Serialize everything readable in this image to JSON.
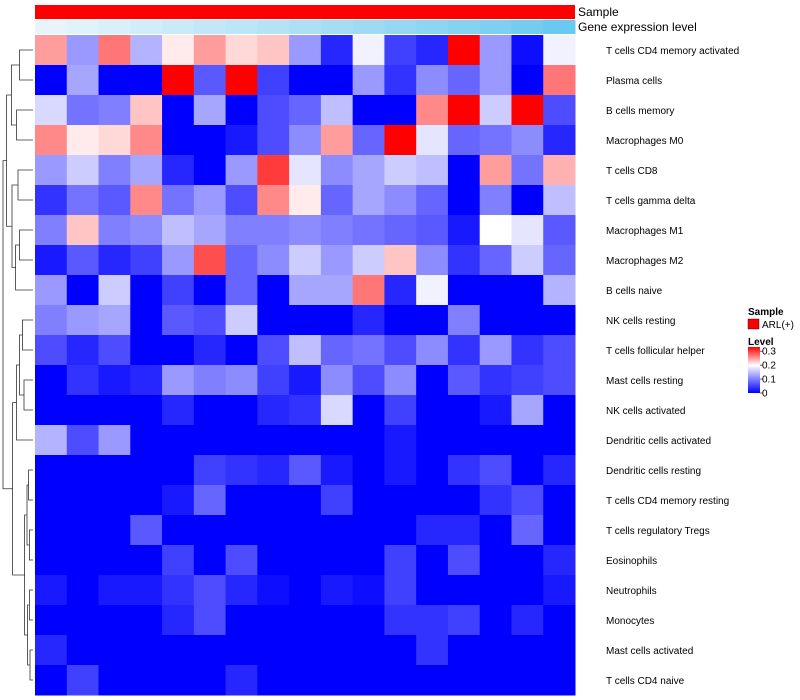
{
  "chart_data": {
    "type": "heatmap",
    "annotations": {
      "top_track_label": "Sample",
      "second_track_label": "Gene expression level",
      "top_track_color": "#ff0000",
      "second_track_gradient": [
        "#eaf6fb",
        "#5bc4ef"
      ]
    },
    "rows": [
      "T cells CD4 memory activated",
      "Plasma cells",
      "B cells memory",
      "Macrophages M0",
      "T cells CD8",
      "T cells gamma delta",
      "Macrophages M1",
      "Macrophages M2",
      "B cells naive",
      "NK cells resting",
      "T cells follicular helper",
      "Mast cells resting",
      "NK cells activated",
      "Dendritic cells activated",
      "Dendritic cells resting",
      "T cells CD4 memory resting",
      "T cells regulatory  Tregs",
      "Eosinophils",
      "Neutrophils",
      "Monocytes",
      "Mast cells activated",
      "T cells CD4 naive"
    ],
    "values": [
      [
        0.25,
        0.12,
        0.27,
        0.14,
        0.21,
        0.25,
        0.22,
        0.23,
        0.12,
        0.03,
        0.19,
        0.05,
        0.03,
        0.33,
        0.12,
        0.01,
        0.19
      ],
      [
        0.0,
        0.13,
        0.0,
        0.0,
        0.33,
        0.07,
        0.33,
        0.05,
        0.0,
        0.0,
        0.12,
        0.04,
        0.11,
        0.08,
        0.12,
        0.0,
        0.27
      ],
      [
        0.17,
        0.09,
        0.1,
        0.23,
        0.0,
        0.13,
        0.0,
        0.06,
        0.08,
        0.15,
        0.0,
        0.0,
        0.26,
        0.33,
        0.16,
        0.33,
        0.06
      ],
      [
        0.26,
        0.21,
        0.22,
        0.26,
        0.0,
        0.0,
        0.02,
        0.06,
        0.11,
        0.25,
        0.08,
        0.33,
        0.18,
        0.08,
        0.09,
        0.11,
        0.03
      ],
      [
        0.12,
        0.16,
        0.1,
        0.13,
        0.03,
        0.0,
        0.12,
        0.3,
        0.18,
        0.11,
        0.13,
        0.16,
        0.15,
        0.0,
        0.25,
        0.09,
        0.24
      ],
      [
        0.04,
        0.09,
        0.07,
        0.26,
        0.09,
        0.12,
        0.06,
        0.26,
        0.21,
        0.08,
        0.13,
        0.11,
        0.08,
        0.0,
        0.1,
        0.0,
        0.15
      ],
      [
        0.1,
        0.23,
        0.1,
        0.11,
        0.15,
        0.13,
        0.1,
        0.1,
        0.11,
        0.1,
        0.09,
        0.08,
        0.07,
        0.02,
        0.2,
        0.18,
        0.07
      ],
      [
        0.02,
        0.07,
        0.03,
        0.05,
        0.12,
        0.29,
        0.08,
        0.11,
        0.16,
        0.12,
        0.16,
        0.23,
        0.11,
        0.04,
        0.08,
        0.16,
        0.08
      ],
      [
        0.12,
        0.0,
        0.16,
        0.0,
        0.05,
        0.0,
        0.08,
        0.0,
        0.13,
        0.13,
        0.27,
        0.03,
        0.19,
        0.0,
        0.0,
        0.0,
        0.14
      ],
      [
        0.1,
        0.12,
        0.13,
        0.0,
        0.07,
        0.06,
        0.16,
        0.0,
        0.0,
        0.0,
        0.03,
        0.0,
        0.0,
        0.1,
        0.0,
        0.0,
        0.0
      ],
      [
        0.06,
        0.03,
        0.06,
        0.0,
        0.0,
        0.03,
        0.0,
        0.06,
        0.15,
        0.08,
        0.09,
        0.06,
        0.11,
        0.04,
        0.12,
        0.04,
        0.06
      ],
      [
        0.0,
        0.04,
        0.02,
        0.03,
        0.12,
        0.1,
        0.11,
        0.05,
        0.02,
        0.11,
        0.06,
        0.11,
        0.0,
        0.07,
        0.04,
        0.05,
        0.06
      ],
      [
        0.0,
        0.0,
        0.0,
        0.0,
        0.03,
        0.0,
        0.0,
        0.03,
        0.04,
        0.17,
        0.0,
        0.05,
        0.0,
        0.0,
        0.02,
        0.13,
        0.0
      ],
      [
        0.14,
        0.06,
        0.12,
        0.0,
        0.0,
        0.0,
        0.0,
        0.0,
        0.0,
        0.0,
        0.0,
        0.02,
        0.0,
        0.0,
        0.0,
        0.0,
        0.0
      ],
      [
        0.0,
        0.0,
        0.0,
        0.0,
        0.0,
        0.05,
        0.04,
        0.03,
        0.07,
        0.02,
        0.0,
        0.02,
        0.0,
        0.04,
        0.06,
        0.0,
        0.03
      ],
      [
        0.0,
        0.0,
        0.0,
        0.0,
        0.02,
        0.08,
        0.0,
        0.0,
        0.0,
        0.05,
        0.0,
        0.0,
        0.0,
        0.0,
        0.04,
        0.06,
        0.0
      ],
      [
        0.0,
        0.0,
        0.0,
        0.07,
        0.0,
        0.0,
        0.0,
        0.0,
        0.0,
        0.0,
        0.0,
        0.0,
        0.03,
        0.03,
        0.0,
        0.08,
        0.0
      ],
      [
        0.0,
        0.0,
        0.0,
        0.0,
        0.05,
        0.0,
        0.06,
        0.0,
        0.0,
        0.0,
        0.0,
        0.05,
        0.0,
        0.06,
        0.0,
        0.0,
        0.03
      ],
      [
        0.02,
        0.0,
        0.02,
        0.02,
        0.04,
        0.06,
        0.03,
        0.01,
        0.0,
        0.02,
        0.01,
        0.05,
        0.0,
        0.0,
        0.0,
        0.0,
        0.02
      ],
      [
        0.0,
        0.0,
        0.0,
        0.0,
        0.03,
        0.06,
        0.0,
        0.0,
        0.0,
        0.0,
        0.0,
        0.04,
        0.04,
        0.05,
        0.0,
        0.03,
        0.0
      ],
      [
        0.03,
        0.0,
        0.0,
        0.0,
        0.0,
        0.0,
        0.0,
        0.0,
        0.0,
        0.0,
        0.0,
        0.0,
        0.04,
        0.0,
        0.0,
        0.0,
        0.0
      ],
      [
        0.0,
        0.05,
        0.0,
        0.0,
        0.0,
        0.0,
        0.03,
        0.0,
        0.0,
        0.0,
        0.0,
        0.0,
        0.0,
        0.0,
        0.0,
        0.0,
        0.0
      ]
    ],
    "gene_expression_levels": [
      0.02,
      0.07,
      0.12,
      0.18,
      0.23,
      0.28,
      0.33,
      0.38,
      0.44,
      0.49,
      0.54,
      0.6,
      0.65,
      0.71,
      0.77,
      0.83,
      0.9
    ],
    "color_scale": {
      "min": 0,
      "mid": 0.2,
      "max": 0.33,
      "low_color": "#0000ff",
      "mid_color": "#ffffff",
      "high_color": "#ff0000"
    },
    "legend": {
      "sample_title": "Sample",
      "sample_entry": "ARL(+)",
      "sample_color": "#ff0000",
      "level_title": "Level",
      "level_ticks": [
        "0.3",
        "0.2",
        "0.1",
        "0"
      ],
      "level_tick_values": [
        0.3,
        0.2,
        0.1,
        0
      ],
      "placement": "right"
    }
  }
}
